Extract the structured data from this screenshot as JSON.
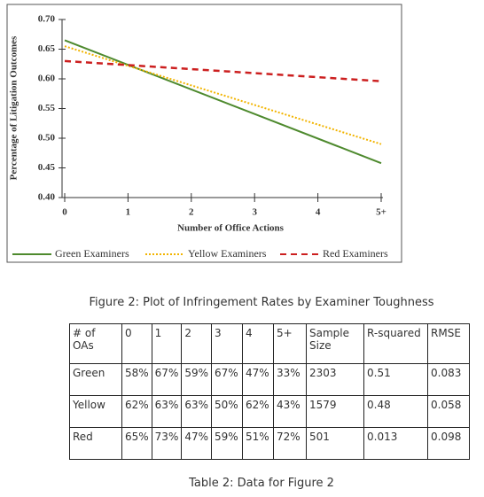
{
  "chart_data": {
    "type": "line",
    "x_label": "Number of Office Actions",
    "y_label": "Percentage of Litigation Outcomes",
    "x": [
      0,
      5
    ],
    "xlim": [
      0,
      5
    ],
    "xticks": [
      0,
      1,
      2,
      3,
      4,
      {
        "value": 5,
        "label": "5+"
      }
    ],
    "ylim": [
      0.4,
      0.7
    ],
    "yticks": [
      {
        "value": 0.4,
        "label": "0.40"
      },
      0.45,
      {
        "value": 0.5,
        "label": "0.50"
      },
      0.55,
      {
        "value": 0.6,
        "label": "0.60"
      },
      0.65,
      {
        "value": 0.7,
        "label": "0.70"
      }
    ],
    "legend": "bottom",
    "series": [
      {
        "name": "Green Examiners",
        "color": "#4e8a2e",
        "style": "solid",
        "values": [
          0.665,
          0.458
        ]
      },
      {
        "name": "Yellow Examiners",
        "color": "#f2b400",
        "style": "dotted",
        "values": [
          0.655,
          0.49
        ]
      },
      {
        "name": "Red Examiners",
        "color": "#cc1f1f",
        "style": "dashed",
        "values": [
          0.63,
          0.596
        ]
      }
    ]
  },
  "figure_caption": "Figure 2: Plot of Infringement Rates by Examiner Toughness",
  "table": {
    "header": [
      "# of OAs",
      "0",
      "1",
      "2",
      "3",
      "4",
      "5+",
      "Sample Size",
      "R-squared",
      "RMSE"
    ],
    "rows": [
      [
        "Green",
        "58%",
        "67%",
        "59%",
        "67%",
        "47%",
        "33%",
        "2303",
        "0.51",
        "0.083"
      ],
      [
        "Yellow",
        "62%",
        "63%",
        "63%",
        "50%",
        "62%",
        "43%",
        "1579",
        "0.48",
        "0.058"
      ],
      [
        "Red",
        "65%",
        "73%",
        "47%",
        "59%",
        "51%",
        "72%",
        "501",
        "0.013",
        "0.098"
      ]
    ]
  },
  "table_caption": "Table 2: Data for Figure 2"
}
